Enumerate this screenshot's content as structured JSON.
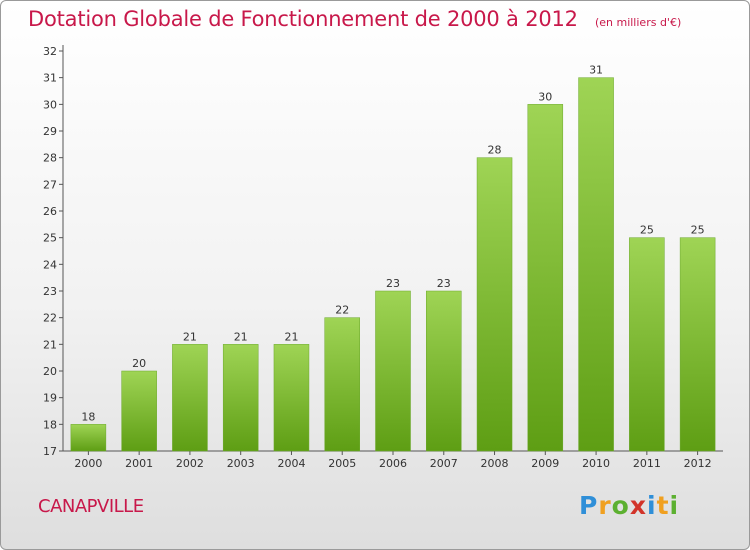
{
  "header": {
    "title": "Dotation Globale de Fonctionnement de 2000 à 2012",
    "subtitle": "(en milliers d'€)"
  },
  "footer": {
    "commune": "CANAPVILLE",
    "logo_text": "Proxiti"
  },
  "colors": {
    "title": "#c8184a",
    "bar_light": "#9fd455",
    "bar_dark": "#5e9e14"
  },
  "chart_data": {
    "type": "bar",
    "title": "Dotation Globale de Fonctionnement de 2000 à 2012",
    "subtitle": "(en milliers d'€)",
    "categories": [
      "2000",
      "2001",
      "2002",
      "2003",
      "2004",
      "2005",
      "2006",
      "2007",
      "2008",
      "2009",
      "2010",
      "2011",
      "2012"
    ],
    "values": [
      18,
      20,
      21,
      21,
      21,
      22,
      23,
      23,
      28,
      30,
      31,
      25,
      25
    ],
    "ylim": [
      17,
      32
    ],
    "yticks": [
      17,
      18,
      19,
      20,
      21,
      22,
      23,
      24,
      25,
      26,
      27,
      28,
      29,
      30,
      31,
      32
    ],
    "grid": false,
    "data_labels": true
  }
}
